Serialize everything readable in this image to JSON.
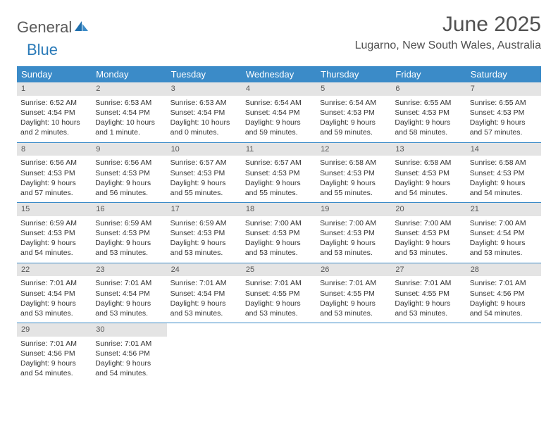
{
  "logo": {
    "text1": "General",
    "text2": "Blue"
  },
  "title": "June 2025",
  "location": "Lugarno, New South Wales, Australia",
  "colors": {
    "header_bg": "#3b8bc8",
    "header_text": "#ffffff",
    "daynum_bg": "#e4e4e4",
    "daynum_text": "#555555",
    "body_text": "#333333",
    "rule": "#3b8bc8",
    "logo_gray": "#5a5a5a",
    "logo_blue": "#2a7ab8"
  },
  "day_headers": [
    "Sunday",
    "Monday",
    "Tuesday",
    "Wednesday",
    "Thursday",
    "Friday",
    "Saturday"
  ],
  "weeks": [
    [
      {
        "n": "1",
        "sr": "Sunrise: 6:52 AM",
        "ss": "Sunset: 4:54 PM",
        "dl": "Daylight: 10 hours and 2 minutes."
      },
      {
        "n": "2",
        "sr": "Sunrise: 6:53 AM",
        "ss": "Sunset: 4:54 PM",
        "dl": "Daylight: 10 hours and 1 minute."
      },
      {
        "n": "3",
        "sr": "Sunrise: 6:53 AM",
        "ss": "Sunset: 4:54 PM",
        "dl": "Daylight: 10 hours and 0 minutes."
      },
      {
        "n": "4",
        "sr": "Sunrise: 6:54 AM",
        "ss": "Sunset: 4:54 PM",
        "dl": "Daylight: 9 hours and 59 minutes."
      },
      {
        "n": "5",
        "sr": "Sunrise: 6:54 AM",
        "ss": "Sunset: 4:53 PM",
        "dl": "Daylight: 9 hours and 59 minutes."
      },
      {
        "n": "6",
        "sr": "Sunrise: 6:55 AM",
        "ss": "Sunset: 4:53 PM",
        "dl": "Daylight: 9 hours and 58 minutes."
      },
      {
        "n": "7",
        "sr": "Sunrise: 6:55 AM",
        "ss": "Sunset: 4:53 PM",
        "dl": "Daylight: 9 hours and 57 minutes."
      }
    ],
    [
      {
        "n": "8",
        "sr": "Sunrise: 6:56 AM",
        "ss": "Sunset: 4:53 PM",
        "dl": "Daylight: 9 hours and 57 minutes."
      },
      {
        "n": "9",
        "sr": "Sunrise: 6:56 AM",
        "ss": "Sunset: 4:53 PM",
        "dl": "Daylight: 9 hours and 56 minutes."
      },
      {
        "n": "10",
        "sr": "Sunrise: 6:57 AM",
        "ss": "Sunset: 4:53 PM",
        "dl": "Daylight: 9 hours and 55 minutes."
      },
      {
        "n": "11",
        "sr": "Sunrise: 6:57 AM",
        "ss": "Sunset: 4:53 PM",
        "dl": "Daylight: 9 hours and 55 minutes."
      },
      {
        "n": "12",
        "sr": "Sunrise: 6:58 AM",
        "ss": "Sunset: 4:53 PM",
        "dl": "Daylight: 9 hours and 55 minutes."
      },
      {
        "n": "13",
        "sr": "Sunrise: 6:58 AM",
        "ss": "Sunset: 4:53 PM",
        "dl": "Daylight: 9 hours and 54 minutes."
      },
      {
        "n": "14",
        "sr": "Sunrise: 6:58 AM",
        "ss": "Sunset: 4:53 PM",
        "dl": "Daylight: 9 hours and 54 minutes."
      }
    ],
    [
      {
        "n": "15",
        "sr": "Sunrise: 6:59 AM",
        "ss": "Sunset: 4:53 PM",
        "dl": "Daylight: 9 hours and 54 minutes."
      },
      {
        "n": "16",
        "sr": "Sunrise: 6:59 AM",
        "ss": "Sunset: 4:53 PM",
        "dl": "Daylight: 9 hours and 53 minutes."
      },
      {
        "n": "17",
        "sr": "Sunrise: 6:59 AM",
        "ss": "Sunset: 4:53 PM",
        "dl": "Daylight: 9 hours and 53 minutes."
      },
      {
        "n": "18",
        "sr": "Sunrise: 7:00 AM",
        "ss": "Sunset: 4:53 PM",
        "dl": "Daylight: 9 hours and 53 minutes."
      },
      {
        "n": "19",
        "sr": "Sunrise: 7:00 AM",
        "ss": "Sunset: 4:53 PM",
        "dl": "Daylight: 9 hours and 53 minutes."
      },
      {
        "n": "20",
        "sr": "Sunrise: 7:00 AM",
        "ss": "Sunset: 4:53 PM",
        "dl": "Daylight: 9 hours and 53 minutes."
      },
      {
        "n": "21",
        "sr": "Sunrise: 7:00 AM",
        "ss": "Sunset: 4:54 PM",
        "dl": "Daylight: 9 hours and 53 minutes."
      }
    ],
    [
      {
        "n": "22",
        "sr": "Sunrise: 7:01 AM",
        "ss": "Sunset: 4:54 PM",
        "dl": "Daylight: 9 hours and 53 minutes."
      },
      {
        "n": "23",
        "sr": "Sunrise: 7:01 AM",
        "ss": "Sunset: 4:54 PM",
        "dl": "Daylight: 9 hours and 53 minutes."
      },
      {
        "n": "24",
        "sr": "Sunrise: 7:01 AM",
        "ss": "Sunset: 4:54 PM",
        "dl": "Daylight: 9 hours and 53 minutes."
      },
      {
        "n": "25",
        "sr": "Sunrise: 7:01 AM",
        "ss": "Sunset: 4:55 PM",
        "dl": "Daylight: 9 hours and 53 minutes."
      },
      {
        "n": "26",
        "sr": "Sunrise: 7:01 AM",
        "ss": "Sunset: 4:55 PM",
        "dl": "Daylight: 9 hours and 53 minutes."
      },
      {
        "n": "27",
        "sr": "Sunrise: 7:01 AM",
        "ss": "Sunset: 4:55 PM",
        "dl": "Daylight: 9 hours and 53 minutes."
      },
      {
        "n": "28",
        "sr": "Sunrise: 7:01 AM",
        "ss": "Sunset: 4:56 PM",
        "dl": "Daylight: 9 hours and 54 minutes."
      }
    ],
    [
      {
        "n": "29",
        "sr": "Sunrise: 7:01 AM",
        "ss": "Sunset: 4:56 PM",
        "dl": "Daylight: 9 hours and 54 minutes."
      },
      {
        "n": "30",
        "sr": "Sunrise: 7:01 AM",
        "ss": "Sunset: 4:56 PM",
        "dl": "Daylight: 9 hours and 54 minutes."
      },
      null,
      null,
      null,
      null,
      null
    ]
  ]
}
